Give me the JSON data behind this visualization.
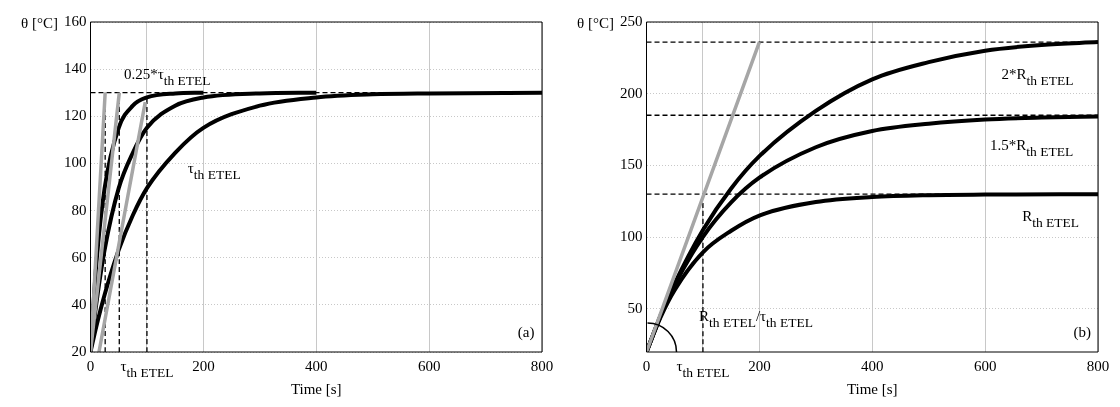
{
  "chart_data": [
    {
      "type": "line",
      "xlabel": "Time [s]",
      "ylabel": "θ [°C]",
      "xlim": [
        0,
        800
      ],
      "xticks": [
        0,
        {
          "value": 100,
          "label": "τ$_{th ETEL}$"
        },
        200,
        400,
        600,
        800
      ],
      "ylim": [
        20,
        160
      ],
      "yticks": [
        20,
        40,
        60,
        80,
        100,
        120,
        140,
        160
      ],
      "grid": true,
      "legend": false,
      "marker": "none",
      "ref_lines": [
        {
          "axis": "y",
          "value": 130,
          "color": "#000000",
          "line_style": "dashed"
        }
      ],
      "series": [
        {
          "type": "line",
          "color": "#a6a6a6",
          "line_style": "solid",
          "x": [
            0,
            26
          ],
          "values": [
            20,
            130
          ]
        },
        {
          "type": "line",
          "color": "#a6a6a6",
          "line_style": "solid",
          "x": [
            0,
            51
          ],
          "values": [
            20,
            130
          ]
        },
        {
          "type": "line",
          "color": "#a6a6a6",
          "line_style": "solid",
          "x": [
            15,
            97
          ],
          "values": [
            20,
            126
          ]
        },
        {
          "type": "line",
          "color": "#000000",
          "line_style": "dashed",
          "x": [
            26,
            26
          ],
          "values": [
            20,
            130
          ]
        },
        {
          "type": "line",
          "color": "#000000",
          "line_style": "dashed",
          "x": [
            51,
            51
          ],
          "values": [
            20,
            130
          ]
        },
        {
          "type": "line",
          "color": "#000000",
          "line_style": "dashed",
          "x": [
            100,
            100
          ],
          "values": [
            20,
            128
          ]
        },
        {
          "type": "line",
          "color": "#000000",
          "line_style": "solid",
          "x": [
            0,
            10,
            25,
            50,
            75,
            100,
            150,
            200
          ],
          "values": [
            20,
            56.3,
            89.5,
            115.1,
            124.5,
            128,
            129.7,
            130
          ]
        },
        {
          "type": "line",
          "color": "#000000",
          "line_style": "solid",
          "x": [
            0,
            10,
            25,
            50,
            75,
            100,
            150,
            200,
            300,
            400
          ],
          "values": [
            20,
            39.9,
            63.3,
            89.5,
            104.5,
            115.1,
            124.5,
            128,
            129.7,
            130
          ]
        },
        {
          "type": "line",
          "color": "#000000",
          "line_style": "solid",
          "x": [
            0,
            10,
            25,
            50,
            75,
            100,
            150,
            200,
            300,
            400,
            500,
            600,
            800
          ],
          "values": [
            20,
            30.5,
            44.3,
            63.3,
            78,
            89.5,
            104.5,
            115.1,
            124.5,
            128,
            129.3,
            129.7,
            130
          ]
        }
      ],
      "annotations": [
        "0.25*τ$_{th ETEL}$",
        "τ$_{th ETEL}$",
        "(a)"
      ]
    },
    {
      "type": "line",
      "xlabel": "Time [s]",
      "ylabel": "θ [°C]",
      "xlim": [
        0,
        800
      ],
      "xticks": [
        0,
        {
          "value": 100,
          "label": "τ$_{th ETEL}$"
        },
        200,
        400,
        600,
        800
      ],
      "ylim": [
        20,
        250
      ],
      "yticks": [
        50,
        100,
        150,
        200,
        250
      ],
      "grid": true,
      "legend": false,
      "marker": "none",
      "ref_lines": [
        {
          "axis": "y",
          "value": 236,
          "color": "#000000",
          "line_style": "dashed"
        },
        {
          "axis": "y",
          "value": 185,
          "color": "#000000",
          "line_style": "dashed"
        },
        {
          "axis": "y",
          "value": 130,
          "color": "#000000",
          "line_style": "dashed"
        }
      ],
      "series": [
        {
          "type": "line",
          "color": "#a6a6a6",
          "line_style": "solid",
          "x": [
            0,
            200
          ],
          "values": [
            20,
            236
          ]
        },
        {
          "type": "line",
          "color": "#000000",
          "line_style": "dashed",
          "x": [
            100,
            100
          ],
          "values": [
            20,
            125
          ]
        },
        {
          "type": "line",
          "color": "#000000",
          "line_style": "solid",
          "x": [
            0,
            25,
            50,
            100,
            150,
            200,
            300,
            400,
            500,
            600,
            800
          ],
          "values": [
            20,
            44.3,
            63.3,
            89.5,
            104.5,
            115.1,
            124.5,
            128,
            129.3,
            129.7,
            130
          ]
        },
        {
          "type": "line",
          "color": "#000000",
          "line_style": "solid",
          "x": [
            0,
            25,
            50,
            100,
            150,
            200,
            300,
            400,
            500,
            600,
            700,
            800
          ],
          "values": [
            20,
            45.3,
            66.8,
            100.3,
            124.3,
            141.5,
            162.7,
            174,
            179.1,
            182,
            183.4,
            184.2
          ]
        },
        {
          "type": "line",
          "color": "#000000",
          "line_style": "solid",
          "x": [
            0,
            25,
            50,
            100,
            150,
            200,
            300,
            400,
            500,
            600,
            700,
            800
          ],
          "values": [
            20,
            45.4,
            67.8,
            105,
            134,
            156.5,
            188,
            210,
            222,
            230,
            234,
            236
          ]
        }
      ],
      "annotations": [
        "2*R$_{th ETEL}$",
        "1.5*R$_{th ETEL}$",
        "R$_{th ETEL}$",
        "R$_{th ETEL}$/τ$_{th ETEL}$",
        "(b)"
      ]
    }
  ]
}
